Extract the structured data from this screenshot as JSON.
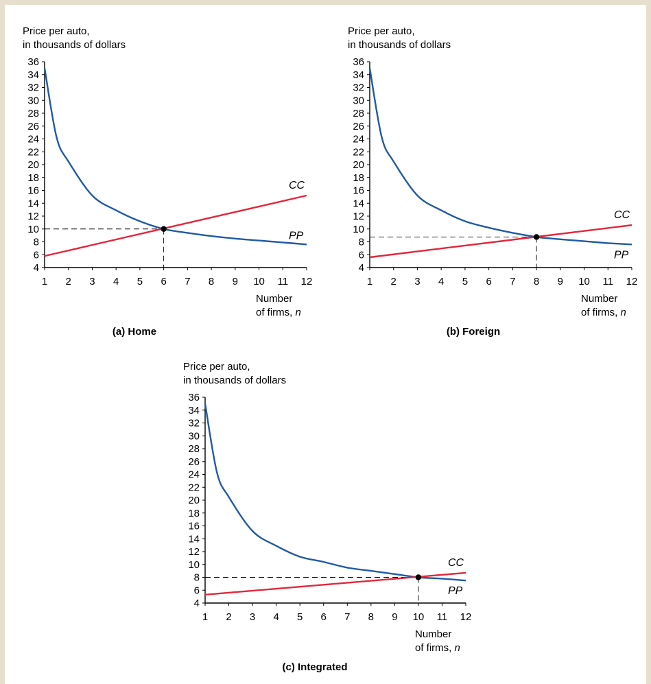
{
  "colors": {
    "pp_curve": "#1f5aa6",
    "cc_curve": "#e3263a",
    "point": "#000000",
    "frame": "#e7dfcd"
  },
  "chart_data": [
    {
      "type": "line",
      "caption": "(a) Home",
      "ylabel": [
        "Price per auto,",
        "in thousands of dollars"
      ],
      "xlabel": [
        "Number",
        "of firms, n"
      ],
      "xlim": [
        1,
        12
      ],
      "ylim": [
        4,
        36
      ],
      "x_ticks": [
        1,
        2,
        3,
        4,
        5,
        6,
        7,
        8,
        9,
        10,
        11,
        12
      ],
      "y_ticks": [
        4,
        6,
        8,
        10,
        12,
        14,
        16,
        18,
        20,
        22,
        24,
        26,
        28,
        30,
        32,
        34,
        36
      ],
      "series": [
        {
          "name": "PP",
          "x": [
            1,
            1.5,
            2,
            3,
            4,
            5,
            6,
            7,
            8,
            9,
            10,
            11,
            12
          ],
          "y": [
            35,
            24.3,
            20.5,
            15.2,
            12.9,
            11.2,
            10,
            9.4,
            8.9,
            8.5,
            8.2,
            7.9,
            7.6
          ]
        },
        {
          "name": "CC",
          "x": [
            1,
            12
          ],
          "y": [
            5.8,
            15.2
          ]
        }
      ],
      "equilibrium": {
        "n": 6,
        "price": 10
      }
    },
    {
      "type": "line",
      "caption": "(b) Foreign",
      "ylabel": [
        "Price per auto,",
        "in thousands of dollars"
      ],
      "xlabel": [
        "Number",
        "of firms, n"
      ],
      "xlim": [
        1,
        12
      ],
      "ylim": [
        4,
        36
      ],
      "x_ticks": [
        1,
        2,
        3,
        4,
        5,
        6,
        7,
        8,
        9,
        10,
        11,
        12
      ],
      "y_ticks": [
        4,
        6,
        8,
        10,
        12,
        14,
        16,
        18,
        20,
        22,
        24,
        26,
        28,
        30,
        32,
        34,
        36
      ],
      "series": [
        {
          "name": "PP",
          "x": [
            1,
            1.5,
            2,
            3,
            4,
            5,
            6,
            7,
            8,
            9,
            10,
            11,
            12
          ],
          "y": [
            35,
            24.3,
            20.5,
            15.2,
            12.9,
            11.2,
            10.2,
            9.4,
            8.75,
            8.4,
            8.1,
            7.8,
            7.6
          ]
        },
        {
          "name": "CC",
          "x": [
            1,
            12
          ],
          "y": [
            5.6,
            10.6
          ]
        }
      ],
      "equilibrium": {
        "n": 8,
        "price": 8.75
      }
    },
    {
      "type": "line",
      "caption": "(c) Integrated",
      "ylabel": [
        "Price per auto,",
        "in thousands of dollars"
      ],
      "xlabel": [
        "Number",
        "of firms, n"
      ],
      "xlim": [
        1,
        12
      ],
      "ylim": [
        4,
        36
      ],
      "x_ticks": [
        1,
        2,
        3,
        4,
        5,
        6,
        7,
        8,
        9,
        10,
        11,
        12
      ],
      "y_ticks": [
        4,
        6,
        8,
        10,
        12,
        14,
        16,
        18,
        20,
        22,
        24,
        26,
        28,
        30,
        32,
        34,
        36
      ],
      "series": [
        {
          "name": "PP",
          "x": [
            1,
            1.5,
            2,
            3,
            4,
            5,
            6,
            7,
            8,
            9,
            10,
            11,
            12
          ],
          "y": [
            35,
            24.3,
            20.5,
            15.2,
            12.9,
            11.2,
            10.4,
            9.5,
            9,
            8.5,
            8,
            7.8,
            7.5
          ]
        },
        {
          "name": "CC",
          "x": [
            1,
            12
          ],
          "y": [
            5.3,
            8.7
          ]
        }
      ],
      "equilibrium": {
        "n": 10,
        "price": 8
      }
    }
  ]
}
